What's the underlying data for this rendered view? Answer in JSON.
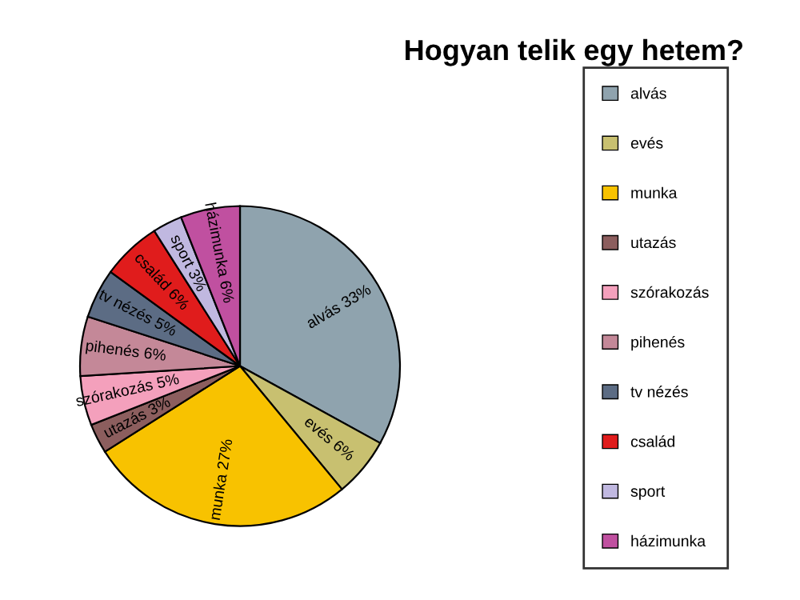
{
  "chart_data": {
    "type": "pie",
    "title": "Hogyan telik egy hetem?",
    "categories": [
      "alvás",
      "evés",
      "munka",
      "utazás",
      "szórakozás",
      "pihenés",
      "tv nézés",
      "család",
      "sport",
      "házimunka"
    ],
    "values": [
      33,
      6,
      27,
      3,
      5,
      6,
      5,
      6,
      3,
      6
    ],
    "colors": [
      "#8fa3ae",
      "#c8c070",
      "#f8c200",
      "#8c5e5e",
      "#f4a0bc",
      "#c48898",
      "#5c6c84",
      "#e01c1c",
      "#c0b8e0",
      "#c050a0"
    ],
    "value_labels": [
      "alvás 33%",
      "evés 6%",
      "munka 27%",
      "utazás 3%",
      "szórakozás 5%",
      "pihenés 6%",
      "tv nézés 5%",
      "család 6%",
      "sport 3%",
      "házimunka 6%"
    ],
    "legend": "right"
  }
}
